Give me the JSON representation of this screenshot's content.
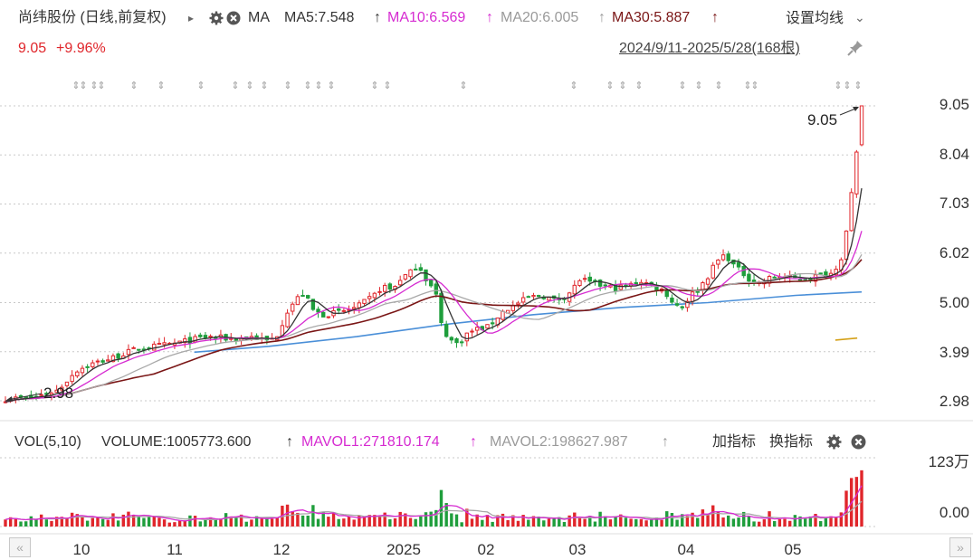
{
  "header": {
    "stock_name": "尚纬股份 (日线,前复权)",
    "arrow_glyph": "▸",
    "ma_label": "MA",
    "ma5": "MA5:7.548",
    "ma10": "MA10:6.569",
    "ma20": "MA20:6.005",
    "ma30": "MA30:5.887",
    "up_arrow": "↑",
    "settings_label": "设置均线",
    "settings_chevron": "⌄",
    "price": "9.05",
    "change_pct": "+9.96%",
    "date_range": "2024/9/11-2025/5/28(168根)"
  },
  "volume_header": {
    "vol_label": "VOL(5,10)",
    "volume": "VOLUME:1005773.600",
    "mavol1": "MAVOL1:271810.174",
    "mavol2": "MAVOL2:198627.987",
    "up_arrow": "↑",
    "add_indicator": "加指标",
    "switch_indicator": "换指标",
    "vol_top_label": "123万",
    "vol_zero_label": "0.00"
  },
  "nav": {
    "prev": "«",
    "next": "»"
  },
  "colors": {
    "up": "#e0262b",
    "down": "#1f9e3c",
    "ma5": "#333333",
    "ma10": "#d62bd1",
    "ma20": "#a8a8a8",
    "ma30": "#7a1616",
    "ma_long": "#4a8fd8",
    "short_ma": "#d4a017"
  },
  "chart_data": {
    "type": "candlestick",
    "title": "尚纬股份 (日线,前复权)",
    "date_range": "2024/9/11-2025/5/28",
    "bar_count": 168,
    "y_ticks": [
      "9.05",
      "8.04",
      "7.03",
      "6.02",
      "5.00",
      "3.99",
      "2.98"
    ],
    "ylim": [
      2.98,
      9.05
    ],
    "x_ticks": [
      "10",
      "11",
      "12",
      "2025",
      "02",
      "03",
      "04",
      "05"
    ],
    "annotations": [
      {
        "text": "9.05",
        "kind": "high",
        "value": 9.05
      },
      {
        "text": "2.98",
        "kind": "low",
        "value": 2.98
      }
    ],
    "grid": true,
    "last_close": 9.05,
    "last_change_pct": 9.96,
    "indicators": {
      "MA5": 7.548,
      "MA10": 6.569,
      "MA20": 6.005,
      "MA30": 5.887
    },
    "volume": {
      "VOLUME": 1005773.6,
      "MAVOL1": 271810.174,
      "MAVOL2": 198627.987,
      "ylim": [
        0,
        1230000
      ]
    },
    "close_path": [
      [
        0,
        3.02
      ],
      [
        6,
        3.04
      ],
      [
        12,
        3.2
      ],
      [
        16,
        3.6
      ],
      [
        20,
        3.75
      ],
      [
        24,
        3.85
      ],
      [
        30,
        4.05
      ],
      [
        38,
        4.15
      ],
      [
        46,
        4.3
      ],
      [
        52,
        4.25
      ],
      [
        56,
        4.3
      ],
      [
        60,
        4.2
      ],
      [
        62,
        4.35
      ],
      [
        64,
        4.8
      ],
      [
        66,
        5.05
      ],
      [
        68,
        5.2
      ],
      [
        70,
        4.85
      ],
      [
        72,
        4.75
      ],
      [
        76,
        4.8
      ],
      [
        80,
        4.9
      ],
      [
        84,
        5.15
      ],
      [
        86,
        5.35
      ],
      [
        88,
        5.25
      ],
      [
        90,
        5.5
      ],
      [
        92,
        5.6
      ],
      [
        94,
        5.8
      ],
      [
        96,
        5.45
      ],
      [
        98,
        5.2
      ],
      [
        99,
        4.6
      ],
      [
        101,
        4.25
      ],
      [
        103,
        4.15
      ],
      [
        105,
        4.35
      ],
      [
        107,
        4.45
      ],
      [
        110,
        4.5
      ],
      [
        113,
        4.8
      ],
      [
        116,
        4.95
      ],
      [
        119,
        5.1
      ],
      [
        122,
        5.15
      ],
      [
        125,
        5.05
      ],
      [
        127,
        5.1
      ],
      [
        129,
        5.25
      ],
      [
        131,
        5.5
      ],
      [
        133,
        5.4
      ],
      [
        136,
        5.35
      ],
      [
        139,
        5.3
      ],
      [
        142,
        5.35
      ],
      [
        145,
        5.45
      ],
      [
        148,
        5.3
      ],
      [
        150,
        5.25
      ],
      [
        152,
        5.0
      ],
      [
        154,
        4.9
      ],
      [
        156,
        5.15
      ],
      [
        158,
        5.3
      ],
      [
        160,
        5.55
      ],
      [
        162,
        5.85
      ],
      [
        164,
        6.0
      ],
      [
        166,
        5.75
      ],
      [
        168,
        5.6
      ],
      [
        170,
        5.45
      ],
      [
        172,
        5.4
      ],
      [
        174,
        5.5
      ],
      [
        176,
        5.55
      ],
      [
        179,
        5.5
      ],
      [
        182,
        5.5
      ],
      [
        185,
        5.55
      ],
      [
        188,
        5.6
      ],
      [
        190,
        5.75
      ],
      [
        191,
        6.15
      ],
      [
        192,
        6.8
      ],
      [
        193,
        7.5
      ],
      [
        194,
        8.22
      ],
      [
        195,
        9.05
      ]
    ],
    "ma_long_points": [
      [
        43,
        3.98
      ],
      [
        60,
        4.1
      ],
      [
        80,
        4.3
      ],
      [
        100,
        4.55
      ],
      [
        120,
        4.75
      ],
      [
        140,
        4.9
      ],
      [
        160,
        5.0
      ],
      [
        180,
        5.15
      ],
      [
        195,
        5.22
      ]
    ],
    "short_ma_points": [
      [
        189,
        4.23
      ],
      [
        194,
        4.27
      ]
    ]
  }
}
